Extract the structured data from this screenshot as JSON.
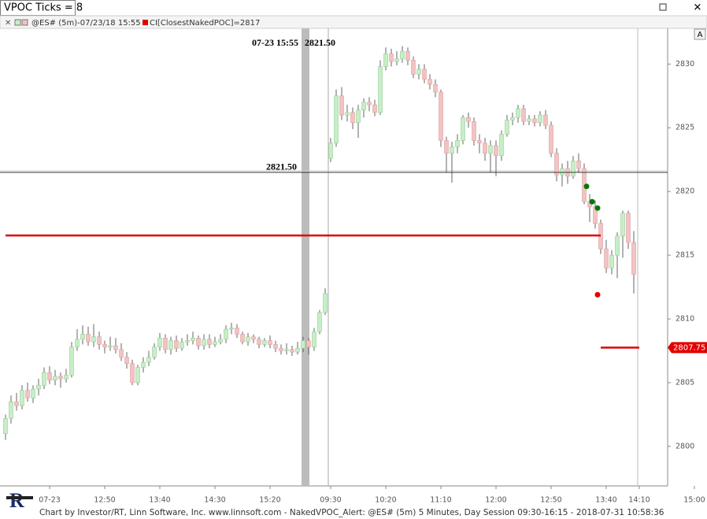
{
  "window": {
    "title": "VPOC Ticks = 8",
    "button": "A"
  },
  "legend": {
    "symbol": "@ES# (5m)-07/23/18 15:55",
    "indicator": "CI[ClosestNakedPOC]=2817"
  },
  "footer": "Chart by Investor/RT, Linn Software, Inc. www.linnsoft.com - NakedVPOC_Alert: @ES# (5m) 5 Minutes, Day Session 09:30-16:15 - 2018-07-31 10:58:36",
  "chart_data": {
    "type": "candlestick",
    "categories": [
      null,
      null,
      null,
      null,
      null,
      null,
      null,
      null,
      "07-23",
      null,
      null,
      null,
      null,
      null,
      null,
      null,
      null,
      null,
      "12:50",
      null,
      null,
      null,
      null,
      null,
      null,
      null,
      null,
      null,
      "13:40",
      null,
      null,
      null,
      null,
      null,
      null,
      null,
      null,
      null,
      "14:30",
      null,
      null,
      null,
      null,
      null,
      null,
      null,
      null,
      null,
      "15:20",
      null,
      null,
      null,
      null,
      null,
      null,
      null,
      null,
      null,
      null,
      "09:30",
      null,
      null,
      null,
      null,
      null,
      null,
      null,
      null,
      null,
      "10:20",
      null,
      null,
      null,
      null,
      null,
      null,
      null,
      null,
      null,
      "11:10",
      null,
      null,
      null,
      null,
      null,
      null,
      null,
      null,
      null,
      "12:00",
      null,
      null,
      null,
      null,
      null,
      null,
      null,
      null,
      null,
      "12:50",
      null,
      null,
      null,
      null,
      null,
      null,
      null,
      null,
      null,
      "13:40",
      null,
      null,
      null,
      null,
      null,
      "14:10",
      null,
      null,
      null,
      null,
      null,
      null,
      null,
      null,
      null,
      "15:00"
    ],
    "open": [
      2801.0,
      2802.2,
      2803.5,
      2803.2,
      2804.4,
      2803.8,
      2804.5,
      2804.8,
      2805.8,
      2805.2,
      2805.5,
      2805.3,
      2805.6,
      2807.8,
      2808.4,
      2808.8,
      2808.2,
      2808.6,
      2808,
      2807.8,
      2807.9,
      2807.6,
      2807,
      2806.5,
      2805,
      2806.2,
      2806.6,
      2807,
      2807.8,
      2808.5,
      2807.6,
      2808.3,
      2807.7,
      2808.2,
      2808.3,
      2808.5,
      2807.9,
      2808.4,
      2808,
      2808.2,
      2808.4,
      2809.2,
      2809.3,
      2808.8,
      2808.2,
      2808.6,
      2808.4,
      2808,
      2808.3,
      2808,
      2807.7,
      2807.5,
      2807.6,
      2807.4,
      2807.7,
      2808.3,
      2807.8,
      2809,
      2810.5,
      2822.6,
      2823.8,
      2827.5,
      2826,
      2826.2,
      2825.4,
      2826.4,
      2827,
      2826.8,
      2826.2,
      2829.8,
      2830.8,
      2830.2,
      2830.4,
      2831,
      2830.3,
      2829.2,
      2829.6,
      2828.8,
      2828.4,
      2827.8,
      2824,
      2823,
      2823.5,
      2824,
      2825.8,
      2825.5,
      2824,
      2823.8,
      2823,
      2823.6,
      2822.8,
      2824.5,
      2825.6,
      2825.8,
      2826.5,
      2825.5,
      2825.7,
      2825.4,
      2826,
      2825.2,
      2823,
      2821.3,
      2821.8,
      2821.2,
      2822.4,
      2821.8,
      2819.2,
      2818.8,
      2817.5,
      2815.5,
      2814,
      2815,
      2816.5,
      2818.3,
      2816,
      null,
      null,
      null,
      null,
      null,
      null,
      null,
      null,
      null,
      null,
      null
    ],
    "high": [
      2802.5,
      2804,
      2804.2,
      2804.8,
      2805,
      2804.8,
      2805.3,
      2806.2,
      2806.3,
      2806,
      2805.8,
      2806.1,
      2808.2,
      2809.2,
      2809.5,
      2809.4,
      2809.6,
      2809,
      2808.3,
      2808.6,
      2808.5,
      2808.1,
      2807.4,
      2806.8,
      2806.4,
      2807,
      2807.5,
      2808.1,
      2808.9,
      2808.8,
      2808.6,
      2808.7,
      2808.5,
      2808.8,
      2809,
      2808.7,
      2808.8,
      2808.8,
      2808.6,
      2808.8,
      2809.5,
      2809.7,
      2809.6,
      2809,
      2808.9,
      2808.8,
      2808.6,
      2808.5,
      2808.7,
      2808.3,
      2808,
      2808.1,
      2807.9,
      2808.2,
      2808.6,
      2808.5,
      2809.3,
      2810.7,
      2812.4,
      2824.2,
      2828,
      2828.2,
      2826.8,
      2826.6,
      2826.8,
      2827.3,
      2827.4,
      2827.2,
      2830.3,
      2831.3,
      2831.2,
      2831,
      2831.4,
      2831.3,
      2830.6,
      2830,
      2830,
      2829.2,
      2828.8,
      2828,
      2824.3,
      2823.9,
      2824.5,
      2826,
      2826.2,
      2825.8,
      2824.5,
      2824.2,
      2824,
      2824,
      2824.8,
      2826,
      2826.2,
      2826.8,
      2826.8,
      2826,
      2826,
      2826.3,
      2826.4,
      2825.5,
      2823.4,
      2822.2,
      2822.4,
      2822.8,
      2823,
      2822.2,
      2819.8,
      2819.3,
      2817.8,
      2816.2,
      2815.4,
      2816.8,
      2818.5,
      2818.5,
      2816.9,
      null,
      null,
      null,
      null,
      null,
      null,
      null,
      null,
      null,
      null,
      null
    ],
    "low": [
      2800.5,
      2801.8,
      2802.8,
      2802.9,
      2803.5,
      2803.4,
      2804,
      2804.5,
      2804.9,
      2804.8,
      2804.6,
      2805,
      2805.4,
      2807.5,
      2808,
      2807.9,
      2807.8,
      2807.6,
      2807.3,
      2807.5,
      2807.3,
      2806.7,
      2806.1,
      2804.8,
      2804.8,
      2805.8,
      2806.3,
      2806.8,
      2807.5,
      2807.3,
      2807.2,
      2807.4,
      2807.5,
      2807.9,
      2808,
      2807.6,
      2807.6,
      2807.7,
      2807.8,
      2808,
      2808.1,
      2808.8,
      2808.5,
      2808,
      2807.9,
      2808.1,
      2807.7,
      2807.8,
      2807.7,
      2807.4,
      2807.2,
      2807.2,
      2807.1,
      2807.2,
      2807.4,
      2807.2,
      2807.5,
      2808.8,
      2810.3,
      2822.3,
      2823.5,
      2825.6,
      2825.5,
      2824.9,
      2824.2,
      2825.8,
      2826.3,
      2825.9,
      2826,
      2829.5,
      2829.8,
      2829.9,
      2830.1,
      2829.9,
      2828.9,
      2828.8,
      2828.5,
      2828,
      2827.4,
      2823.5,
      2821.5,
      2820.7,
      2823,
      2823.7,
      2825,
      2823.6,
      2823,
      2822.4,
      2821.5,
      2821.2,
      2822.4,
      2824.3,
      2825.2,
      2825.4,
      2825.2,
      2825.2,
      2825.1,
      2825.1,
      2824.9,
      2822.7,
      2820.8,
      2820.4,
      2820.6,
      2821,
      2821.5,
      2819,
      2817.6,
      2817.1,
      2815.1,
      2813.6,
      2813.5,
      2813.2,
      2814.8,
      2815.5,
      2812,
      null,
      null,
      null,
      null,
      null,
      null,
      null,
      null,
      null,
      null,
      null
    ],
    "close": [
      2802.2,
      2803.5,
      2803.2,
      2804.4,
      2803.8,
      2804.5,
      2804.8,
      2805.8,
      2805.2,
      2805.5,
      2805.3,
      2805.6,
      2807.8,
      2808.4,
      2808.8,
      2808.2,
      2808.6,
      2808,
      2807.8,
      2807.9,
      2807.6,
      2807,
      2806.5,
      2805,
      2806.2,
      2806.6,
      2807,
      2807.8,
      2808.5,
      2807.6,
      2808.3,
      2807.7,
      2808.2,
      2808.3,
      2808.5,
      2807.9,
      2808.4,
      2808,
      2808.2,
      2808.4,
      2809.2,
      2809.3,
      2808.8,
      2808.2,
      2808.6,
      2808.4,
      2808,
      2808.3,
      2808,
      2807.7,
      2807.5,
      2807.6,
      2807.4,
      2807.7,
      2808.3,
      2807.8,
      2809,
      2810.5,
      2812,
      2823.8,
      2827.5,
      2826,
      2826.2,
      2825.4,
      2826.4,
      2827,
      2826.8,
      2826.2,
      2829.8,
      2830.8,
      2830.2,
      2830.4,
      2831,
      2830.3,
      2829.2,
      2829.6,
      2828.8,
      2828.4,
      2827.8,
      2824,
      2823,
      2823.5,
      2824,
      2825.8,
      2825.5,
      2824,
      2823.8,
      2823,
      2823.6,
      2822.8,
      2824.5,
      2825.6,
      2825.8,
      2826.5,
      2825.5,
      2825.7,
      2825.4,
      2826,
      2825.2,
      2823,
      2821.3,
      2821.8,
      2821.2,
      2822.4,
      2821.8,
      2819.2,
      2818.8,
      2817.5,
      2815.5,
      2814,
      2815,
      2816.5,
      2818.3,
      2816,
      2813.5,
      null,
      null,
      null,
      null,
      null,
      null,
      null,
      null,
      null,
      null,
      null
    ],
    "up_color": "#c6efc6",
    "down_color": "#f3c3c3",
    "ylim": [
      2796.9,
      2832.8
    ],
    "yticks": [
      2800,
      2805,
      2810,
      2815,
      2820,
      2825,
      2830
    ],
    "hlines": [
      {
        "value": 2821.5,
        "label": "2821.50",
        "color": "#333333"
      }
    ],
    "poc_lines": [
      {
        "value": 2816.55,
        "start": 0,
        "end": 108,
        "color": "#e00000"
      },
      {
        "value": 2807.75,
        "start": 108,
        "end": 115,
        "color": "#e00000"
      }
    ],
    "signals": [
      {
        "x": 106,
        "value": 2820.4,
        "color": "#007a00"
      },
      {
        "x": 107,
        "value": 2819.2,
        "color": "#007a00"
      },
      {
        "x": 108,
        "value": 2818.7,
        "color": "#007a00"
      },
      {
        "x": 108,
        "value": 2811.9,
        "color": "#e00000"
      }
    ],
    "cursor": {
      "x": 54,
      "label": "07-23 15:55",
      "price": {
        "value": 2821.5,
        "label": "2821.50"
      }
    },
    "session_break": 58
  }
}
